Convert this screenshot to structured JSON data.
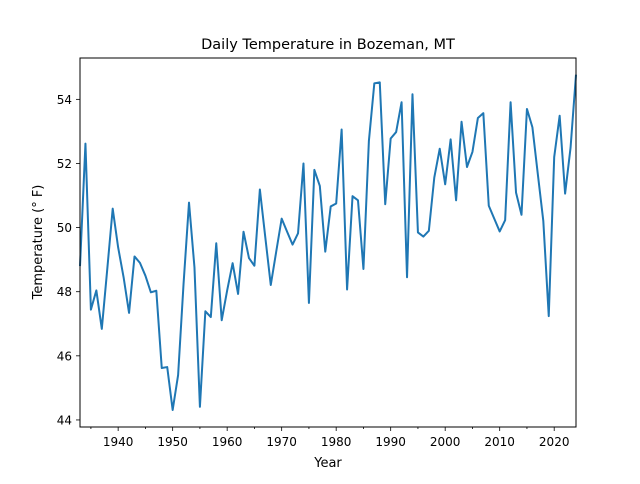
{
  "chart_data": {
    "type": "line",
    "title": "Daily Temperature in Bozeman, MT",
    "xlabel": "Year",
    "ylabel": "Temperature (° F)",
    "xlim": [
      1933,
      2024
    ],
    "ylim": [
      43.78,
      55.29
    ],
    "xticks": [
      1940,
      1950,
      1960,
      1970,
      1980,
      1990,
      2000,
      2010,
      2020
    ],
    "yticks": [
      44,
      46,
      48,
      50,
      52,
      54
    ],
    "grid": false,
    "color": "#1f77b4",
    "x_start": 1933,
    "values": [
      48.8,
      52.62,
      47.44,
      48.04,
      46.84,
      48.7,
      50.59,
      49.38,
      48.45,
      47.34,
      49.1,
      48.9,
      48.5,
      47.98,
      48.03,
      45.62,
      45.65,
      44.31,
      45.4,
      48.25,
      50.78,
      48.76,
      44.41,
      47.39,
      47.21,
      49.51,
      47.11,
      48.04,
      48.89,
      47.93,
      49.87,
      49.05,
      48.81,
      51.19,
      49.69,
      48.21,
      49.25,
      50.28,
      49.87,
      49.47,
      49.82,
      52.0,
      47.65,
      51.8,
      51.3,
      49.25,
      50.66,
      50.75,
      53.06,
      48.07,
      50.98,
      50.85,
      48.71,
      52.7,
      54.5,
      54.53,
      50.73,
      52.78,
      52.98,
      53.91,
      48.45,
      54.16,
      49.85,
      49.72,
      49.9,
      51.56,
      52.46,
      51.35,
      52.75,
      50.85,
      53.3,
      51.89,
      52.36,
      53.42,
      53.57,
      50.68,
      50.28,
      49.88,
      50.23,
      53.91,
      51.09,
      50.4,
      53.7,
      53.13,
      51.66,
      50.21,
      47.24,
      52.2,
      53.49,
      51.06,
      52.49,
      54.77
    ]
  }
}
